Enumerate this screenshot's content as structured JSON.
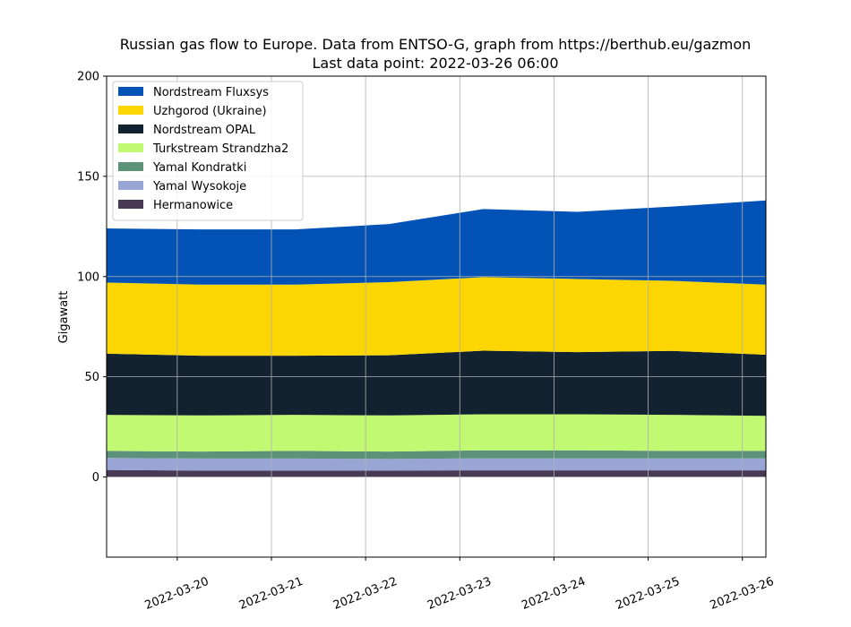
{
  "chart_data": {
    "type": "area",
    "stacked": true,
    "title": "Russian gas flow to Europe. Data from ENTSO-G, graph from https://berthub.eu/gazmon",
    "subtitle": "Last data point: 2022-03-26 06:00",
    "xlabel": "",
    "ylabel": "Gigawatt",
    "ylim": [
      -40,
      200
    ],
    "xlim": [
      "2022-03-19 06:00",
      "2022-03-26 06:00"
    ],
    "yticks": [
      "0",
      "50",
      "100",
      "150",
      "200"
    ],
    "xticks": [
      "2022-03-20",
      "2022-03-21",
      "2022-03-22",
      "2022-03-23",
      "2022-03-24",
      "2022-03-25",
      "2022-03-26"
    ],
    "grid": true,
    "legend_position": "upper-left",
    "x": [
      "2022-03-19 06:00",
      "2022-03-20 06:00",
      "2022-03-21 06:00",
      "2022-03-22 06:00",
      "2022-03-23 06:00",
      "2022-03-24 06:00",
      "2022-03-25 06:00",
      "2022-03-26 06:00"
    ],
    "series": [
      {
        "name": "Hermanowice",
        "color": "#483955",
        "values": [
          3.5,
          3.2,
          3.2,
          3.2,
          3.3,
          3.3,
          3.3,
          3.3
        ]
      },
      {
        "name": "Yamal Wysokoje",
        "color": "#98a5d5",
        "values": [
          6.0,
          6.0,
          6.0,
          5.8,
          6.0,
          6.0,
          6.0,
          6.0
        ]
      },
      {
        "name": "Yamal Kondratki",
        "color": "#5c927a",
        "values": [
          3.5,
          3.5,
          3.8,
          3.7,
          4.0,
          4.0,
          3.7,
          3.7
        ]
      },
      {
        "name": "Turkstream Strandzha2",
        "color": "#c2f972",
        "values": [
          18.0,
          18.0,
          18.0,
          18.0,
          18.0,
          18.0,
          18.0,
          17.5
        ]
      },
      {
        "name": "Nordstream OPAL",
        "color": "#122230",
        "values": [
          30.5,
          29.8,
          29.5,
          30.0,
          31.7,
          31.0,
          31.9,
          30.5
        ]
      },
      {
        "name": "Uzhgorod (Ukraine)",
        "color": "#fcd602",
        "values": [
          35.5,
          35.5,
          35.5,
          36.5,
          36.7,
          36.5,
          35.0,
          35.0
        ]
      },
      {
        "name": "Nordstream Fluxsys",
        "color": "#0253b5",
        "values": [
          27.0,
          27.5,
          27.5,
          29.0,
          34.0,
          33.5,
          37.0,
          42.0
        ]
      }
    ]
  }
}
